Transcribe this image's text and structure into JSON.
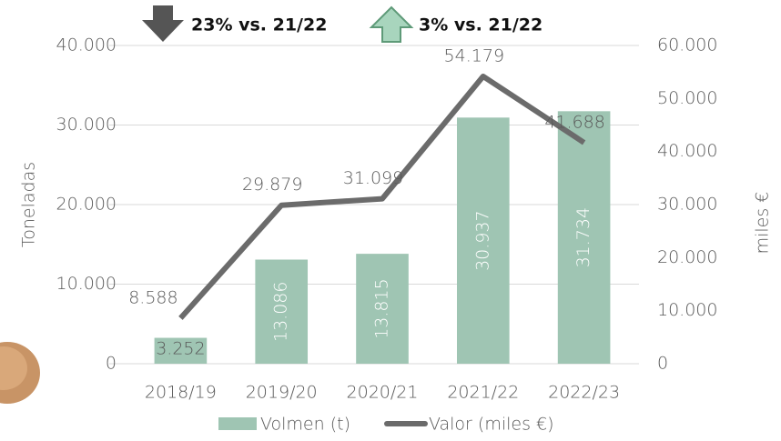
{
  "chart_data": {
    "type": "bar-line",
    "annotations": [
      "23% vs. 21/22",
      "3% vs. 21/22"
    ],
    "ylabel": "Toneladas",
    "y2label": "miles €",
    "categories": [
      "2018/19",
      "2019/20",
      "2020/21",
      "2021/22",
      "2022/23"
    ],
    "series": [
      {
        "name": "Volmen (t)",
        "type": "bar",
        "color": "#9fc5b3",
        "values": [
          3252,
          13086,
          13815,
          30937,
          31734
        ],
        "value_labels": [
          "3.252",
          "13.086",
          "13.815",
          "30.937",
          "31.734"
        ]
      },
      {
        "name": "Valor (miles €)",
        "type": "line",
        "axis": "y2",
        "color": "#6b6b6b",
        "values": [
          8588,
          29879,
          31099,
          54179,
          41688
        ],
        "value_labels": [
          "8.588",
          "29.879",
          "31.099",
          "54.179",
          "41.688"
        ]
      }
    ],
    "ylim": [
      0,
      40000
    ],
    "yticks": [
      0,
      {
        "value": 10000,
        "label": "10.000"
      },
      {
        "value": 20000,
        "label": "20.000"
      },
      {
        "value": 30000,
        "label": "30.000"
      },
      {
        "value": 40000,
        "label": "40.000"
      }
    ],
    "y2lim": [
      0,
      60000
    ],
    "y2ticks": [
      0,
      {
        "value": 10000,
        "label": "10.000"
      },
      {
        "value": 20000,
        "label": "20.000"
      },
      {
        "value": 30000,
        "label": "30.000"
      },
      {
        "value": 40000,
        "label": "40.000"
      },
      {
        "value": 50000,
        "label": "50.000"
      },
      {
        "value": 60000,
        "label": "60.000"
      }
    ],
    "grid": true,
    "legend": "bottom"
  }
}
